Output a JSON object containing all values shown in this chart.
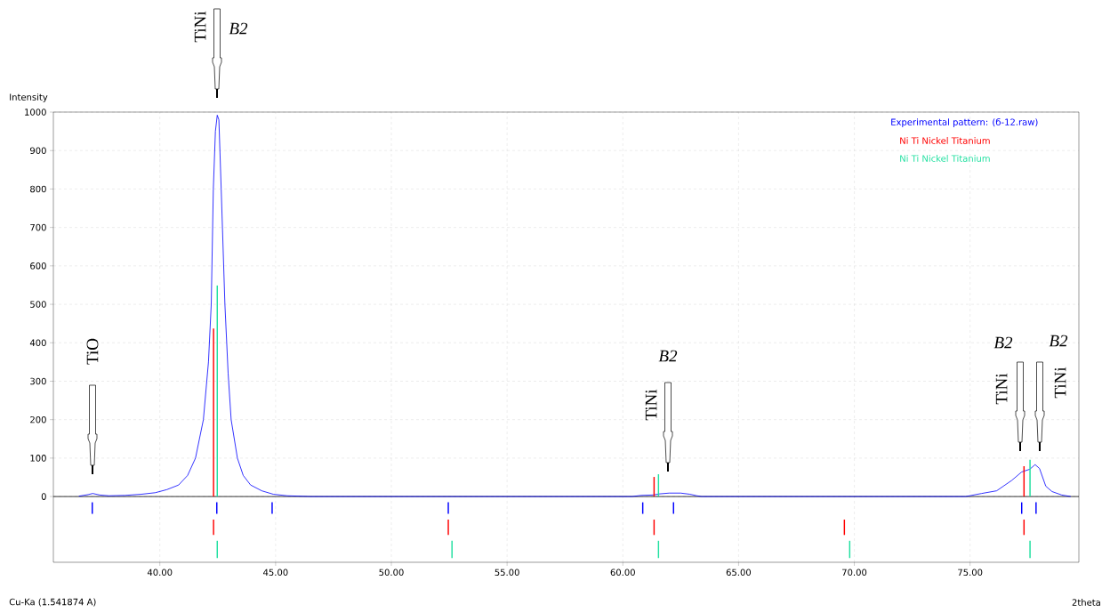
{
  "chart_data": {
    "type": "line",
    "xlabel": "2theta",
    "ylabel": "Intensity",
    "xlim": [
      35.4,
      79.7
    ],
    "ylim": [
      -171,
      1000
    ],
    "xticks": [
      {
        "value": 40,
        "label": "40.00"
      },
      {
        "value": 45,
        "label": "45.00"
      },
      {
        "value": 50,
        "label": "50.00"
      },
      {
        "value": 55,
        "label": "55.00"
      },
      {
        "value": 60,
        "label": "60.00"
      },
      {
        "value": 65,
        "label": "65.00"
      },
      {
        "value": 70,
        "label": "70.00"
      },
      {
        "value": 75,
        "label": "75.00"
      }
    ],
    "yticks": [
      0,
      100,
      200,
      300,
      400,
      500,
      600,
      700,
      800,
      900,
      1000
    ],
    "grid": true,
    "legend": "top right",
    "ref_lines": [
      {
        "axis": "y",
        "value": 0,
        "color": "#000000"
      }
    ],
    "series": [
      {
        "name": "Experimental pattern: (б-12.raw)",
        "color": "#0000ff",
        "x": [
          36.5,
          36.9,
          37.1,
          37.4,
          37.8,
          38.5,
          39.2,
          39.8,
          40.3,
          40.81,
          41.2,
          41.54,
          41.88,
          42.1,
          42.22,
          42.31,
          42.4,
          42.48,
          42.55,
          42.65,
          42.81,
          42.95,
          43.08,
          43.35,
          43.6,
          43.92,
          44.4,
          44.9,
          45.5,
          46.5,
          60.4,
          60.8,
          61.3,
          61.6,
          62.0,
          62.5,
          62.9,
          63.2,
          63.4,
          74.81,
          75.5,
          76.15,
          76.8,
          77.23,
          77.58,
          77.81,
          78.0,
          78.27,
          78.54,
          78.96,
          79.35
        ],
        "values": [
          1,
          5,
          8,
          4,
          2,
          3,
          6,
          10,
          18,
          30,
          55,
          100,
          200,
          350,
          500,
          800,
          950,
          992,
          980,
          800,
          500,
          320,
          200,
          100,
          55,
          30,
          15,
          6,
          2,
          0,
          0,
          3,
          4,
          7,
          9,
          9,
          6,
          2,
          0,
          0,
          8,
          15,
          42,
          64,
          71,
          83,
          73,
          27,
          13,
          4,
          0
        ]
      },
      {
        "type": "bar",
        "color": "#0000ff",
        "x": [
          37.08,
          42.46,
          44.85,
          52.46,
          60.86,
          62.19,
          77.23,
          77.85
        ],
        "base": [
          -15,
          -15,
          -15,
          -15,
          -15,
          -15,
          -15,
          -15
        ],
        "values": [
          -30,
          -30,
          -30,
          -30,
          -30,
          -30,
          -30,
          -30
        ]
      },
      {
        "type": "bar",
        "color": "#ff0000",
        "x": [
          42.32,
          52.46,
          61.35,
          69.57,
          77.33
        ],
        "base": [
          -60,
          -60,
          -60,
          -60,
          -60
        ],
        "values": [
          -40,
          -40,
          -40,
          -40,
          -40
        ]
      },
      {
        "type": "bar",
        "color": "#20e0a0",
        "x": [
          42.48,
          52.62,
          61.54,
          69.8,
          77.59
        ],
        "base": [
          -115,
          -115,
          -115,
          -115,
          -115
        ],
        "values": [
          -45,
          -45,
          -45,
          -45,
          -45
        ]
      },
      {
        "name": "Ni Ti Nickel Titanium",
        "type": "bar",
        "color": "#ff0000",
        "x": [
          42.32,
          61.35,
          77.33
        ],
        "values": [
          437,
          51,
          79
        ]
      },
      {
        "name": "Ni Ti Nickel Titanium",
        "type": "bar",
        "color": "#20e0a0",
        "x": [
          42.48,
          61.54,
          77.59
        ],
        "values": [
          549,
          58,
          96
        ]
      }
    ],
    "annotations": [
      "TiO",
      "TiNi",
      "B2",
      "TiNi",
      "B2",
      "TiNi",
      "B2",
      "TiNi",
      "B2",
      "Cu-Ka (1.541874 A)"
    ]
  }
}
